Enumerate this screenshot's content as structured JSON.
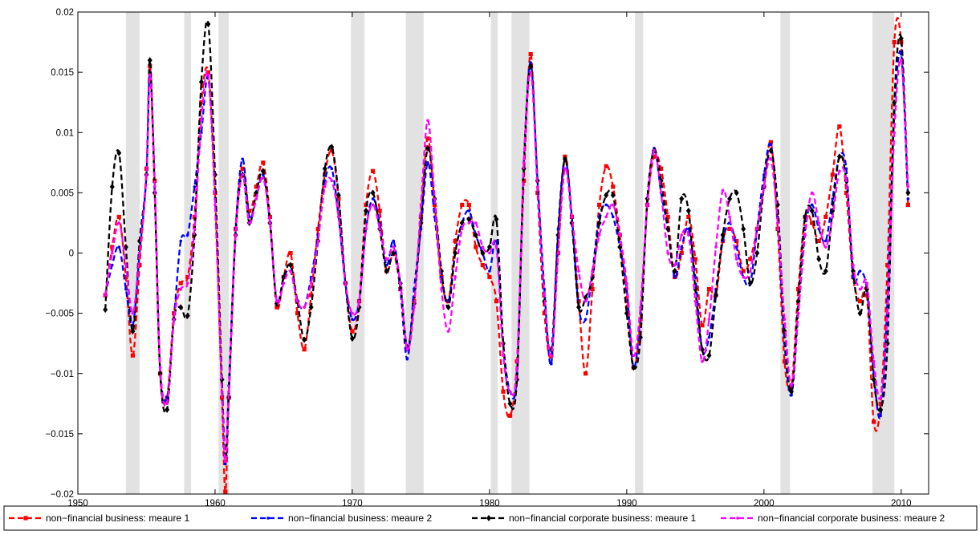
{
  "chart_data": {
    "type": "line",
    "title": "",
    "xlabel": "",
    "ylabel": "",
    "xlim": [
      1950,
      2012
    ],
    "ylim": [
      -0.02,
      0.02
    ],
    "xticks": [
      1950,
      1960,
      1970,
      1980,
      1990,
      2000,
      2010
    ],
    "xtick_labels": [
      "1950",
      "1960",
      "1970",
      "1980",
      "1990",
      "2000",
      "2010"
    ],
    "yticks": [
      -0.02,
      -0.015,
      -0.01,
      -0.005,
      0,
      0.005,
      0.01,
      0.015,
      0.02
    ],
    "ytick_labels": [
      "−0.02",
      "−0.015",
      "−0.01",
      "−0.005",
      "0",
      "0.005",
      "0.01",
      "0.015",
      "0.02"
    ],
    "grid": false,
    "legend_position": "bottom",
    "recessions": [
      [
        1953.5,
        1954.5
      ],
      [
        1957.75,
        1958.25
      ],
      [
        1960.25,
        1961.0
      ],
      [
        1969.9,
        1970.9
      ],
      [
        1973.9,
        1975.2
      ],
      [
        1980.1,
        1980.6
      ],
      [
        1981.6,
        1982.9
      ],
      [
        1990.6,
        1991.2
      ],
      [
        2001.2,
        2001.9
      ],
      [
        2007.9,
        2009.5
      ]
    ],
    "series": [
      {
        "name": "non−financial business: meaure 1",
        "color": "#ff0000",
        "marker": "square",
        "x": [
          1952.0,
          1952.5,
          1953.0,
          1953.5,
          1954.0,
          1954.5,
          1955.0,
          1955.25,
          1955.6,
          1956.0,
          1956.5,
          1957.0,
          1957.5,
          1958.0,
          1958.5,
          1959.0,
          1959.5,
          1960.0,
          1960.5,
          1960.75,
          1961.0,
          1961.5,
          1962.0,
          1962.5,
          1963.0,
          1963.5,
          1964.0,
          1964.5,
          1965.0,
          1965.5,
          1966.0,
          1966.5,
          1967.0,
          1967.5,
          1968.0,
          1968.5,
          1969.0,
          1969.5,
          1970.0,
          1970.5,
          1971.0,
          1971.5,
          1972.0,
          1972.5,
          1973.0,
          1973.5,
          1974.0,
          1974.5,
          1975.0,
          1975.5,
          1976.0,
          1976.5,
          1977.0,
          1977.5,
          1978.0,
          1978.5,
          1979.0,
          1979.5,
          1980.0,
          1980.5,
          1981.0,
          1981.5,
          1982.0,
          1982.5,
          1983.0,
          1983.5,
          1984.0,
          1984.5,
          1985.0,
          1985.5,
          1986.0,
          1986.5,
          1987.0,
          1987.5,
          1988.0,
          1988.5,
          1989.0,
          1989.5,
          1990.0,
          1990.5,
          1991.0,
          1991.5,
          1992.0,
          1992.5,
          1993.0,
          1993.5,
          1994.0,
          1994.5,
          1995.0,
          1995.5,
          1996.0,
          1996.5,
          1997.0,
          1997.5,
          1998.0,
          1998.5,
          1999.0,
          1999.5,
          2000.0,
          2000.5,
          2001.0,
          2001.5,
          2002.0,
          2002.5,
          2003.0,
          2003.5,
          2004.0,
          2004.5,
          2005.0,
          2005.5,
          2006.0,
          2006.5,
          2007.0,
          2007.5,
          2008.0,
          2008.5,
          2009.0,
          2009.5,
          2010.0,
          2010.5
        ],
        "y": [
          -0.0035,
          0.0005,
          0.003,
          -0.002,
          -0.0085,
          -0.001,
          0.007,
          0.0155,
          0.006,
          -0.01,
          -0.012,
          -0.005,
          -0.0025,
          -0.002,
          0.003,
          0.0125,
          0.015,
          0.005,
          -0.012,
          -0.0198,
          -0.012,
          0.002,
          0.007,
          0.0035,
          0.0055,
          0.0075,
          0.003,
          -0.0045,
          -0.002,
          0.0,
          -0.005,
          -0.008,
          -0.0035,
          0.002,
          0.0065,
          0.0085,
          0.0045,
          -0.0025,
          -0.0065,
          -0.004,
          0.004,
          0.0068,
          0.0035,
          -0.0015,
          0.0,
          -0.003,
          -0.008,
          -0.004,
          0.003,
          0.0095,
          0.004,
          -0.002,
          -0.004,
          0.001,
          0.004,
          0.004,
          0.0005,
          -0.001,
          -0.002,
          -0.004,
          -0.0115,
          -0.0135,
          -0.009,
          0.006,
          0.0165,
          0.005,
          -0.005,
          -0.0085,
          0.0,
          0.008,
          0.003,
          -0.004,
          -0.01,
          -0.003,
          0.004,
          0.0072,
          0.0055,
          0.0015,
          -0.004,
          -0.0095,
          -0.0055,
          0.004,
          0.008,
          0.007,
          0.003,
          -0.002,
          0.0,
          0.003,
          -0.0005,
          -0.006,
          -0.003,
          -0.0035,
          0.001,
          0.002,
          0.001,
          -0.0015,
          -0.0005,
          0.002,
          0.0055,
          0.0092,
          0.002,
          -0.009,
          -0.011,
          -0.003,
          0.003,
          0.0025,
          0.001,
          0.003,
          0.0065,
          0.0105,
          0.005,
          -0.002,
          -0.004,
          -0.0035,
          -0.014,
          -0.0125,
          -0.001,
          0.0175,
          0.0175,
          0.004
        ]
      },
      {
        "name": "non−financial business: meaure 2",
        "color": "#0000ff",
        "marker": "dot",
        "x": [
          1952.0,
          1952.5,
          1953.0,
          1953.5,
          1954.0,
          1954.5,
          1955.0,
          1955.25,
          1955.6,
          1956.0,
          1956.5,
          1957.0,
          1957.5,
          1958.0,
          1958.5,
          1959.0,
          1959.5,
          1960.0,
          1960.5,
          1960.75,
          1961.0,
          1961.5,
          1962.0,
          1962.5,
          1963.0,
          1963.5,
          1964.0,
          1964.5,
          1965.0,
          1965.5,
          1966.0,
          1966.5,
          1967.0,
          1967.5,
          1968.0,
          1968.5,
          1969.0,
          1969.5,
          1970.0,
          1970.5,
          1971.0,
          1971.5,
          1972.0,
          1972.5,
          1973.0,
          1973.5,
          1974.0,
          1974.5,
          1975.0,
          1975.5,
          1976.0,
          1976.5,
          1977.0,
          1977.5,
          1978.0,
          1978.5,
          1979.0,
          1979.5,
          1980.0,
          1980.5,
          1981.0,
          1981.5,
          1982.0,
          1982.5,
          1983.0,
          1983.5,
          1984.0,
          1984.5,
          1985.0,
          1985.5,
          1986.0,
          1986.5,
          1987.0,
          1987.5,
          1988.0,
          1988.5,
          1989.0,
          1989.5,
          1990.0,
          1990.5,
          1991.0,
          1991.5,
          1992.0,
          1992.5,
          1993.0,
          1993.5,
          1994.0,
          1994.5,
          1995.0,
          1995.5,
          1996.0,
          1996.5,
          1997.0,
          1997.5,
          1998.0,
          1998.5,
          1999.0,
          1999.5,
          2000.0,
          2000.5,
          2001.0,
          2001.5,
          2002.0,
          2002.5,
          2003.0,
          2003.5,
          2004.0,
          2004.5,
          2005.0,
          2005.5,
          2006.0,
          2006.5,
          2007.0,
          2007.5,
          2008.0,
          2008.5,
          2009.0,
          2009.5,
          2010.0,
          2010.5
        ],
        "y": [
          -0.0035,
          -0.001,
          0.0005,
          -0.003,
          -0.006,
          0.0,
          0.0065,
          0.015,
          0.0055,
          -0.0095,
          -0.012,
          -0.0055,
          0.001,
          0.0015,
          0.0055,
          0.01,
          0.0145,
          0.0045,
          -0.0115,
          -0.0175,
          -0.011,
          0.002,
          0.0078,
          0.003,
          0.0045,
          0.0065,
          0.0025,
          -0.004,
          -0.002,
          -0.0015,
          -0.004,
          -0.0045,
          -0.002,
          0.0015,
          0.006,
          0.007,
          0.003,
          -0.0025,
          -0.0055,
          -0.004,
          0.002,
          0.0045,
          0.0025,
          -0.001,
          0.001,
          -0.003,
          -0.0088,
          -0.003,
          0.002,
          0.0075,
          0.003,
          -0.002,
          -0.004,
          0.0,
          0.0025,
          0.0035,
          0.0015,
          0.0,
          -0.0015,
          0.001,
          -0.0075,
          -0.0115,
          -0.01,
          0.0075,
          0.0158,
          0.006,
          -0.003,
          -0.0092,
          0.002,
          0.0078,
          0.003,
          -0.0045,
          -0.0055,
          -0.0015,
          0.003,
          0.004,
          0.003,
          0.0005,
          -0.003,
          -0.0095,
          -0.005,
          0.004,
          0.0087,
          0.005,
          0.002,
          -0.002,
          0.0005,
          0.002,
          -0.002,
          -0.008,
          -0.007,
          -0.003,
          0.001,
          0.0025,
          0.0005,
          -0.002,
          -0.0025,
          0.002,
          0.0065,
          0.009,
          0.003,
          -0.0075,
          -0.0118,
          -0.005,
          0.002,
          0.004,
          0.002,
          0.001,
          0.0045,
          0.008,
          0.007,
          -0.002,
          -0.0015,
          -0.003,
          -0.01,
          -0.0135,
          -0.004,
          0.0115,
          0.0165,
          0.0045
        ]
      },
      {
        "name": "non−financial corporate business: meaure 1",
        "color": "#000000",
        "marker": "diamond",
        "x": [
          1952.0,
          1952.5,
          1953.0,
          1953.5,
          1954.0,
          1954.5,
          1955.0,
          1955.25,
          1955.6,
          1956.0,
          1956.5,
          1957.0,
          1957.5,
          1958.0,
          1958.5,
          1959.0,
          1959.5,
          1960.0,
          1960.5,
          1960.75,
          1961.0,
          1961.5,
          1962.0,
          1962.5,
          1963.0,
          1963.5,
          1964.0,
          1964.5,
          1965.0,
          1965.5,
          1966.0,
          1966.5,
          1967.0,
          1967.5,
          1968.0,
          1968.5,
          1969.0,
          1969.5,
          1970.0,
          1970.5,
          1971.0,
          1971.5,
          1972.0,
          1972.5,
          1973.0,
          1973.5,
          1974.0,
          1974.5,
          1975.0,
          1975.5,
          1976.0,
          1976.5,
          1977.0,
          1977.5,
          1978.0,
          1978.5,
          1979.0,
          1979.5,
          1980.0,
          1980.5,
          1981.0,
          1981.5,
          1982.0,
          1982.5,
          1983.0,
          1983.5,
          1984.0,
          1984.5,
          1985.0,
          1985.5,
          1986.0,
          1986.5,
          1987.0,
          1987.5,
          1988.0,
          1988.5,
          1989.0,
          1989.5,
          1990.0,
          1990.5,
          1991.0,
          1991.5,
          1992.0,
          1992.5,
          1993.0,
          1993.5,
          1994.0,
          1994.5,
          1995.0,
          1995.5,
          1996.0,
          1996.5,
          1997.0,
          1997.5,
          1998.0,
          1998.5,
          1999.0,
          1999.5,
          2000.0,
          2000.5,
          2001.0,
          2001.5,
          2002.0,
          2002.5,
          2003.0,
          2003.5,
          2004.0,
          2004.5,
          2005.0,
          2005.5,
          2006.0,
          2006.5,
          2007.0,
          2007.5,
          2008.0,
          2008.5,
          2009.0,
          2009.5,
          2010.0,
          2010.5
        ],
        "y": [
          -0.0047,
          0.0055,
          0.0083,
          0.0005,
          -0.0065,
          0.001,
          0.0065,
          0.016,
          0.005,
          -0.01,
          -0.013,
          -0.0055,
          -0.0045,
          -0.0052,
          0.0015,
          0.0142,
          0.019,
          0.0065,
          -0.0105,
          -0.0168,
          -0.012,
          0.0015,
          0.0065,
          0.0025,
          0.005,
          0.0068,
          0.0025,
          -0.0042,
          -0.002,
          -0.001,
          -0.004,
          -0.0072,
          -0.0045,
          0.001,
          0.007,
          0.0088,
          0.0048,
          -0.0025,
          -0.0071,
          -0.0045,
          0.0035,
          0.005,
          0.002,
          -0.0015,
          0.0,
          -0.0025,
          -0.0078,
          -0.0042,
          0.0025,
          0.0087,
          0.0045,
          -0.0015,
          -0.0045,
          0.0,
          0.0025,
          0.0028,
          0.0015,
          0.0,
          0.0005,
          0.0028,
          -0.0075,
          -0.0125,
          -0.0105,
          0.007,
          0.0155,
          0.006,
          -0.004,
          -0.008,
          0.0015,
          0.0078,
          0.0025,
          -0.0045,
          -0.0037,
          -0.002,
          0.0025,
          0.0048,
          0.0048,
          0.0005,
          -0.005,
          -0.0095,
          -0.007,
          0.0045,
          0.0085,
          0.006,
          0.002,
          -0.0015,
          0.0045,
          0.0035,
          -0.003,
          -0.008,
          -0.0085,
          -0.0035,
          0.0015,
          0.0045,
          0.005,
          0.002,
          -0.0025,
          0.0,
          0.0055,
          0.0085,
          0.004,
          -0.0065,
          -0.0115,
          -0.004,
          0.003,
          0.0035,
          -0.0005,
          -0.0015,
          0.0035,
          0.008,
          0.006,
          -0.0015,
          -0.005,
          -0.003,
          -0.0105,
          -0.013,
          -0.0075,
          0.0125,
          0.0178,
          0.005
        ]
      },
      {
        "name": "non−financial corporate business: meaure 2",
        "color": "#ff00ff",
        "marker": "dot",
        "x": [
          1952.0,
          1952.5,
          1953.0,
          1953.5,
          1954.0,
          1954.5,
          1955.0,
          1955.25,
          1955.6,
          1956.0,
          1956.5,
          1957.0,
          1957.5,
          1958.0,
          1958.5,
          1959.0,
          1959.5,
          1960.0,
          1960.5,
          1960.75,
          1961.0,
          1961.5,
          1962.0,
          1962.5,
          1963.0,
          1963.5,
          1964.0,
          1964.5,
          1965.0,
          1965.5,
          1966.0,
          1966.5,
          1967.0,
          1967.5,
          1968.0,
          1968.5,
          1969.0,
          1969.5,
          1970.0,
          1970.5,
          1971.0,
          1971.5,
          1972.0,
          1972.5,
          1973.0,
          1973.5,
          1974.0,
          1974.5,
          1975.0,
          1975.5,
          1976.0,
          1976.5,
          1977.0,
          1977.5,
          1978.0,
          1978.5,
          1979.0,
          1979.5,
          1980.0,
          1980.5,
          1981.0,
          1981.5,
          1982.0,
          1982.5,
          1983.0,
          1983.5,
          1984.0,
          1984.5,
          1985.0,
          1985.5,
          1986.0,
          1986.5,
          1987.0,
          1987.5,
          1988.0,
          1988.5,
          1989.0,
          1989.5,
          1990.0,
          1990.5,
          1991.0,
          1991.5,
          1992.0,
          1992.5,
          1993.0,
          1993.5,
          1994.0,
          1994.5,
          1995.0,
          1995.5,
          1996.0,
          1996.5,
          1997.0,
          1997.5,
          1998.0,
          1998.5,
          1999.0,
          1999.5,
          2000.0,
          2000.5,
          2001.0,
          2001.5,
          2002.0,
          2002.5,
          2003.0,
          2003.5,
          2004.0,
          2004.5,
          2005.0,
          2005.5,
          2006.0,
          2006.5,
          2007.0,
          2007.5,
          2008.0,
          2008.5,
          2009.0,
          2009.5,
          2010.0,
          2010.5
        ],
        "y": [
          -0.0035,
          0.0,
          0.0025,
          -0.001,
          -0.005,
          0.0,
          0.0065,
          0.0148,
          0.0055,
          -0.0095,
          -0.0125,
          -0.0055,
          -0.003,
          -0.0025,
          0.002,
          0.011,
          0.0148,
          0.004,
          -0.0115,
          -0.0173,
          -0.0115,
          0.0015,
          0.0065,
          0.0025,
          0.0045,
          0.0062,
          0.0025,
          -0.004,
          -0.0025,
          -0.0015,
          -0.004,
          -0.0045,
          -0.0025,
          0.001,
          0.0055,
          0.006,
          0.003,
          -0.0025,
          -0.005,
          -0.004,
          0.002,
          0.004,
          0.002,
          -0.0005,
          0.0005,
          -0.0025,
          -0.008,
          -0.0045,
          0.004,
          0.011,
          0.0045,
          -0.003,
          -0.0065,
          -0.002,
          0.002,
          0.0025,
          0.0025,
          0.0005,
          0.0,
          0.0005,
          -0.0085,
          -0.0115,
          -0.0095,
          0.0075,
          0.015,
          0.0055,
          -0.0035,
          -0.0085,
          0.0,
          0.007,
          0.003,
          -0.0015,
          -0.004,
          -0.0015,
          0.0015,
          0.003,
          0.004,
          0.0015,
          -0.0025,
          -0.0085,
          -0.0045,
          0.004,
          0.0085,
          0.005,
          0.0,
          -0.001,
          0.0015,
          0.0015,
          -0.004,
          -0.009,
          -0.0055,
          0.0005,
          0.0052,
          0.003,
          -0.0005,
          -0.002,
          -0.0015,
          0.002,
          0.0055,
          0.0078,
          0.0025,
          -0.0055,
          -0.011,
          -0.005,
          0.0015,
          0.005,
          0.0025,
          0.0005,
          0.003,
          0.0068,
          0.006,
          -0.001,
          -0.003,
          -0.0025,
          -0.009,
          -0.012,
          -0.005,
          0.01,
          0.016,
          0.0055
        ]
      }
    ]
  }
}
